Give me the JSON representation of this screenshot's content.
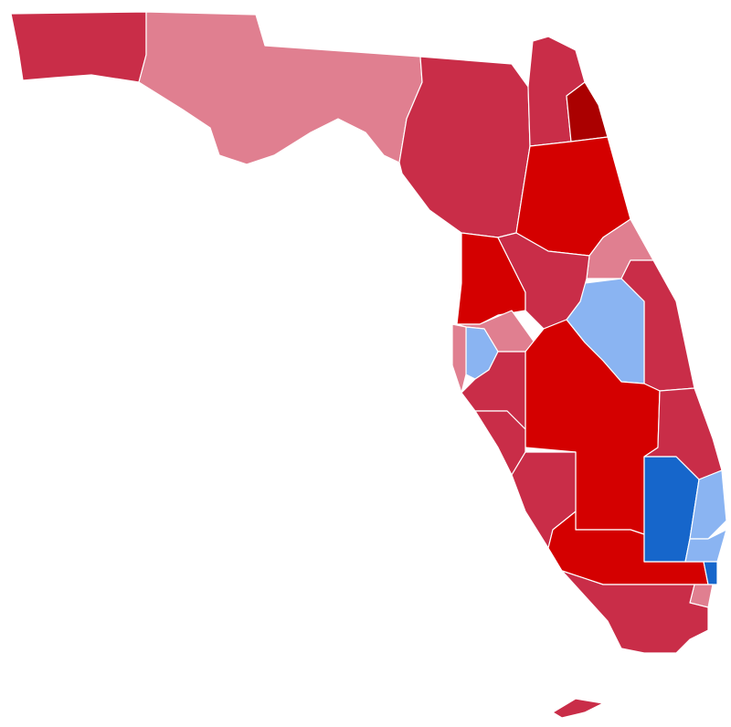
{
  "map": {
    "region_colors": [
      "#c92d48",
      "#e07f90",
      "#c92d48",
      "#c92d48",
      "#aa0000",
      "#d40000",
      "#e07f90",
      "#c92d48",
      "#8ab4f2",
      "#d40000",
      "#c92d48",
      "#e07f90",
      "#8ab4f2",
      "#e07f90",
      "#d40000",
      "#c92d48",
      "#c92d48",
      "#c92d48",
      "#d40000",
      "#c92d48",
      "#1666cb",
      "#8ab4f2",
      "#8ab4f2",
      "#1666cb",
      "#e07f90",
      "#c92d48",
      "#c92d48"
    ]
  }
}
